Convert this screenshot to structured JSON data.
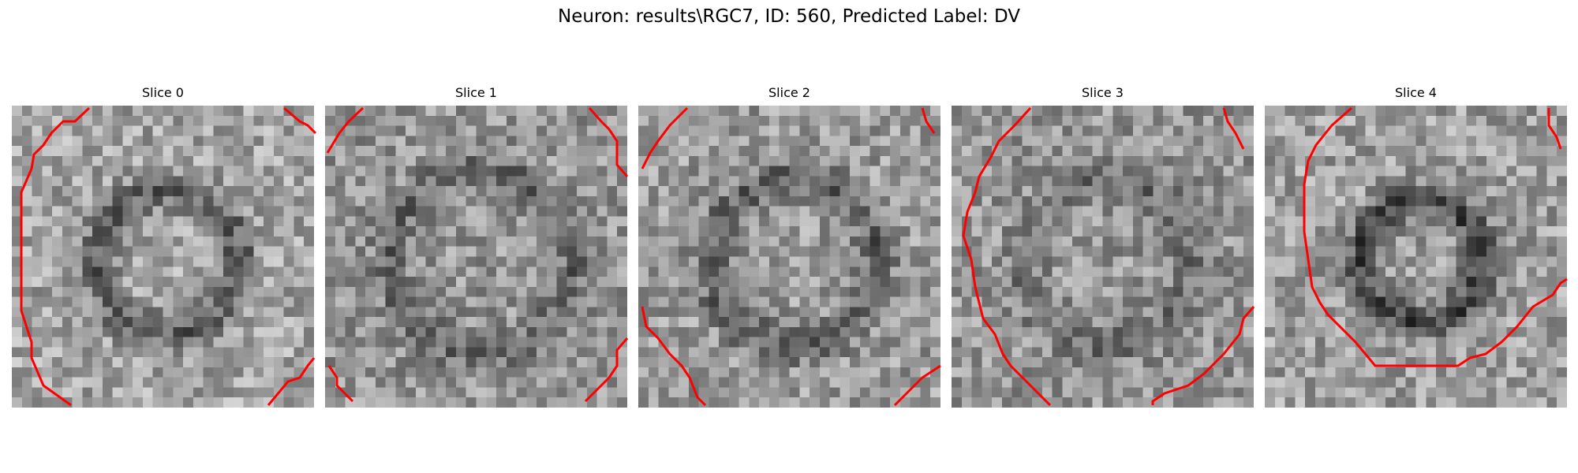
{
  "figure": {
    "title": "Neuron: results\\RGC7, ID: 560, Predicted Label: DV",
    "contour_color": "#ff0000",
    "colormap": "gray"
  },
  "slices": [
    {
      "label": "Slice 0"
    },
    {
      "label": "Slice 1"
    },
    {
      "label": "Slice 2"
    },
    {
      "label": "Slice 3"
    },
    {
      "label": "Slice 4"
    }
  ]
}
